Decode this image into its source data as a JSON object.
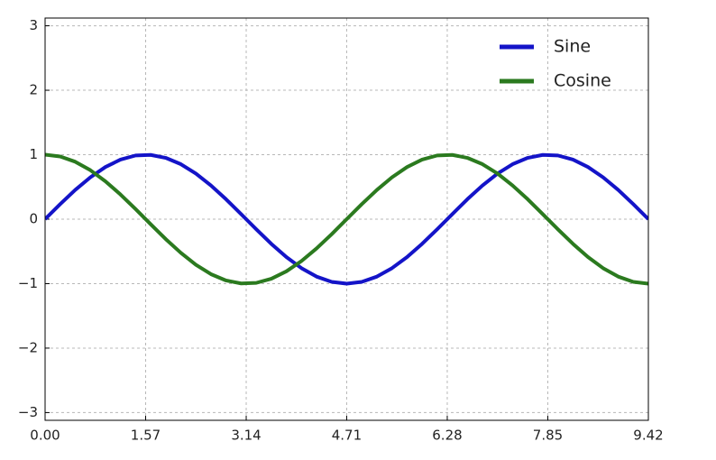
{
  "chart_data": {
    "type": "line",
    "x": [
      0,
      0.236,
      0.471,
      0.707,
      0.942,
      1.178,
      1.414,
      1.649,
      1.885,
      2.121,
      2.356,
      2.592,
      2.827,
      3.063,
      3.299,
      3.534,
      3.77,
      4.006,
      4.241,
      4.477,
      4.712,
      4.948,
      5.184,
      5.419,
      5.655,
      5.89,
      6.126,
      6.362,
      6.597,
      6.833,
      7.069,
      7.304,
      7.54,
      7.775,
      8.011,
      8.247,
      8.482,
      8.718,
      8.954,
      9.189,
      9.425
    ],
    "series": [
      {
        "name": "Sine",
        "color": "#1414c8",
        "values": [
          0,
          0.233,
          0.454,
          0.649,
          0.809,
          0.924,
          0.988,
          0.997,
          0.951,
          0.853,
          0.707,
          0.522,
          0.309,
          0.078,
          -0.156,
          -0.383,
          -0.588,
          -0.76,
          -0.891,
          -0.972,
          -1,
          -0.972,
          -0.891,
          -0.76,
          -0.588,
          -0.383,
          -0.156,
          0.078,
          0.309,
          0.522,
          0.707,
          0.853,
          0.951,
          0.997,
          0.988,
          0.924,
          0.809,
          0.649,
          0.454,
          0.233,
          0
        ]
      },
      {
        "name": "Cosine",
        "color": "#2b7a1f",
        "values": [
          1,
          0.972,
          0.891,
          0.76,
          0.588,
          0.383,
          0.156,
          -0.078,
          -0.309,
          -0.522,
          -0.707,
          -0.853,
          -0.951,
          -0.997,
          -0.988,
          -0.924,
          -0.809,
          -0.649,
          -0.454,
          -0.233,
          0,
          0.233,
          0.454,
          0.649,
          0.809,
          0.924,
          0.988,
          0.997,
          0.951,
          0.853,
          0.707,
          0.522,
          0.309,
          0.078,
          -0.156,
          -0.383,
          -0.588,
          -0.76,
          -0.891,
          -0.972,
          -1
        ]
      }
    ],
    "xlim": [
      0,
      9.425
    ],
    "xticks": [
      {
        "value": 0,
        "label": "0.00"
      },
      {
        "value": 1.571,
        "label": "1.57"
      },
      {
        "value": 3.142,
        "label": "3.14"
      },
      {
        "value": 4.712,
        "label": "4.71"
      },
      {
        "value": 6.283,
        "label": "6.28"
      },
      {
        "value": 7.854,
        "label": "7.85"
      },
      {
        "value": 9.425,
        "label": "9.42"
      }
    ],
    "ylim": [
      -3.12,
      3.12
    ],
    "yticks": [
      {
        "value": -3,
        "label": "−3"
      },
      {
        "value": -2,
        "label": "−2"
      },
      {
        "value": -1,
        "label": "−1"
      },
      0,
      1,
      2,
      3
    ],
    "grid": true,
    "legend": "upper right"
  }
}
